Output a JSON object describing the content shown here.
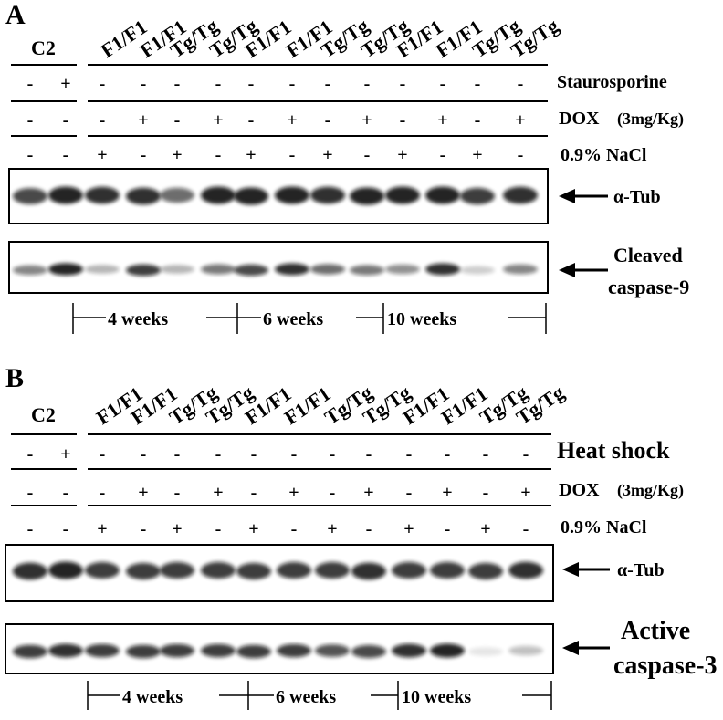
{
  "panels": [
    {
      "id": "A",
      "label": "A",
      "control": "C2",
      "genotypes": [
        "F1/F1",
        "F1/F1",
        "Tg/Tg",
        "Tg/Tg",
        "F1/F1",
        "F1/F1",
        "Tg/Tg",
        "Tg/Tg",
        "F1/F1",
        "F1/F1",
        "Tg/Tg",
        "Tg/Tg"
      ],
      "treatment_rows": [
        {
          "label": "Staurosporine",
          "signs": [
            "-",
            "+",
            "-",
            "-",
            "-",
            "-",
            "-",
            "-",
            "-",
            "-",
            "-",
            "-",
            "-",
            "-"
          ]
        },
        {
          "label": "DOX",
          "sublabel": "(3mg/Kg)",
          "signs": [
            "-",
            "-",
            "-",
            "+",
            "-",
            "+",
            "-",
            "+",
            "-",
            "+",
            "-",
            "+",
            "-",
            "+"
          ]
        },
        {
          "label": "0.9% NaCl",
          "signs": [
            "-",
            "-",
            "+",
            "-",
            "+",
            "-",
            "+",
            "-",
            "+",
            "-",
            "+",
            "-",
            "+",
            "-"
          ]
        }
      ],
      "blots": [
        {
          "label": "α-Tub",
          "intensity": [
            0.75,
            0.9,
            0.85,
            0.85,
            0.6,
            0.9,
            0.9,
            0.9,
            0.85,
            0.9,
            0.9,
            0.9,
            0.8,
            0.85
          ]
        },
        {
          "label": "Cleaved caspase-9",
          "label_lines": [
            "Cleaved",
            "caspase-9"
          ],
          "intensity": [
            0.5,
            0.9,
            0.3,
            0.8,
            0.3,
            0.55,
            0.75,
            0.85,
            0.6,
            0.55,
            0.45,
            0.85,
            0.2,
            0.5
          ]
        }
      ],
      "time_groups": [
        "4 weeks",
        "6 weeks",
        "10 weeks"
      ]
    },
    {
      "id": "B",
      "label": "B",
      "control": "C2",
      "genotypes": [
        "F1/F1",
        "F1/F1",
        "Tg/Tg",
        "Tg/Tg",
        "F1/F1",
        "F1/F1",
        "Tg/Tg",
        "Tg/Tg",
        "F1/F1",
        "F1/F1",
        "Tg/Tg",
        "Tg/Tg"
      ],
      "treatment_rows": [
        {
          "label": "Heat shock",
          "signs": [
            "-",
            "+",
            "-",
            "-",
            "-",
            "-",
            "-",
            "-",
            "-",
            "-",
            "-",
            "-",
            "-",
            "-"
          ]
        },
        {
          "label": "DOX",
          "sublabel": "(3mg/Kg)",
          "signs": [
            "-",
            "-",
            "-",
            "+",
            "-",
            "+",
            "-",
            "+",
            "-",
            "+",
            "-",
            "+",
            "-",
            "+"
          ]
        },
        {
          "label": "0.9% NaCl",
          "signs": [
            "-",
            "-",
            "+",
            "-",
            "+",
            "-",
            "+",
            "-",
            "+",
            "-",
            "+",
            "-",
            "+",
            "-"
          ]
        }
      ],
      "blots": [
        {
          "label": "α-Tub",
          "intensity": [
            0.85,
            0.9,
            0.8,
            0.8,
            0.8,
            0.8,
            0.8,
            0.8,
            0.8,
            0.85,
            0.8,
            0.8,
            0.8,
            0.85
          ]
        },
        {
          "label": "Active caspase-3",
          "label_lines": [
            "Active",
            "caspase-3"
          ],
          "intensity": [
            0.8,
            0.85,
            0.8,
            0.8,
            0.8,
            0.8,
            0.8,
            0.8,
            0.7,
            0.75,
            0.85,
            0.9,
            0.1,
            0.25
          ]
        }
      ],
      "time_groups": [
        "4 weeks",
        "6 weeks",
        "10 weeks"
      ]
    }
  ],
  "colors": {
    "ink": "#000000",
    "band": "#111111",
    "background": "#ffffff"
  }
}
